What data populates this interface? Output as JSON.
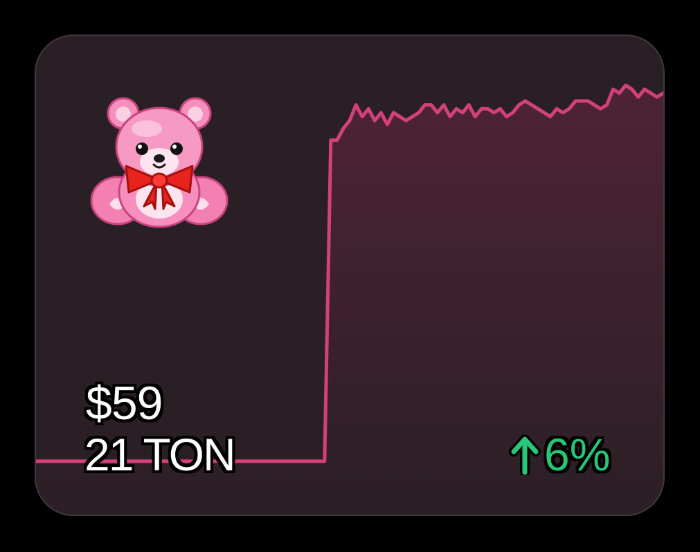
{
  "colors": {
    "line": "#d2417a",
    "fill_top": "#4e2335",
    "fill_bottom": "#2b1f26",
    "card_bg": "#2b1f26",
    "positive": "#27c77a"
  },
  "icon": "teddy-bear-icon",
  "price": {
    "usd": "$59",
    "ton": "21 TON"
  },
  "change": {
    "value": "6%",
    "direction": "up"
  },
  "chart_data": {
    "type": "area",
    "title": "",
    "xlabel": "",
    "ylabel": "",
    "grid": false,
    "ylim": [
      0,
      100
    ],
    "x": [
      0,
      1,
      2,
      3,
      4,
      5,
      6,
      7,
      8,
      9,
      10,
      11,
      12,
      13,
      14,
      15,
      16,
      17,
      18,
      19,
      20,
      21,
      22,
      23,
      24,
      25,
      26,
      27,
      28,
      29,
      30,
      31,
      32,
      33,
      34,
      35,
      36,
      37,
      38,
      39,
      40,
      41,
      42,
      43,
      44,
      45,
      46,
      47,
      48,
      49,
      50,
      51,
      52,
      53,
      54,
      55,
      56,
      57,
      58,
      59,
      60,
      61,
      62,
      63,
      64,
      65,
      66,
      67,
      68,
      69,
      70,
      71,
      72,
      73,
      74,
      75,
      76,
      77,
      78,
      79,
      80,
      81,
      82,
      83,
      84,
      85,
      86,
      87,
      88,
      89,
      90,
      91,
      92,
      93,
      94,
      95,
      96,
      97,
      98,
      99,
      100
    ],
    "values": [
      2,
      2,
      2,
      2,
      2,
      2,
      2,
      2,
      2,
      2,
      2,
      2,
      2,
      2,
      2,
      2,
      2,
      2,
      2,
      2,
      2,
      2,
      2,
      2,
      2,
      2,
      2,
      2,
      2,
      2,
      2,
      2,
      2,
      2,
      2,
      2,
      2,
      2,
      2,
      2,
      2,
      2,
      2,
      2,
      2,
      2,
      2,
      84,
      84,
      87,
      89,
      93,
      90,
      92,
      89,
      91,
      88,
      91,
      90,
      89,
      90,
      91,
      93,
      93,
      91,
      93,
      90,
      92,
      91,
      93,
      90,
      92,
      92,
      91,
      92,
      90,
      91,
      93,
      94,
      93,
      92,
      91,
      90,
      92,
      91,
      92,
      94,
      94,
      94,
      93,
      92,
      93,
      97,
      96,
      98,
      97,
      95,
      97,
      96,
      95,
      96
    ]
  }
}
